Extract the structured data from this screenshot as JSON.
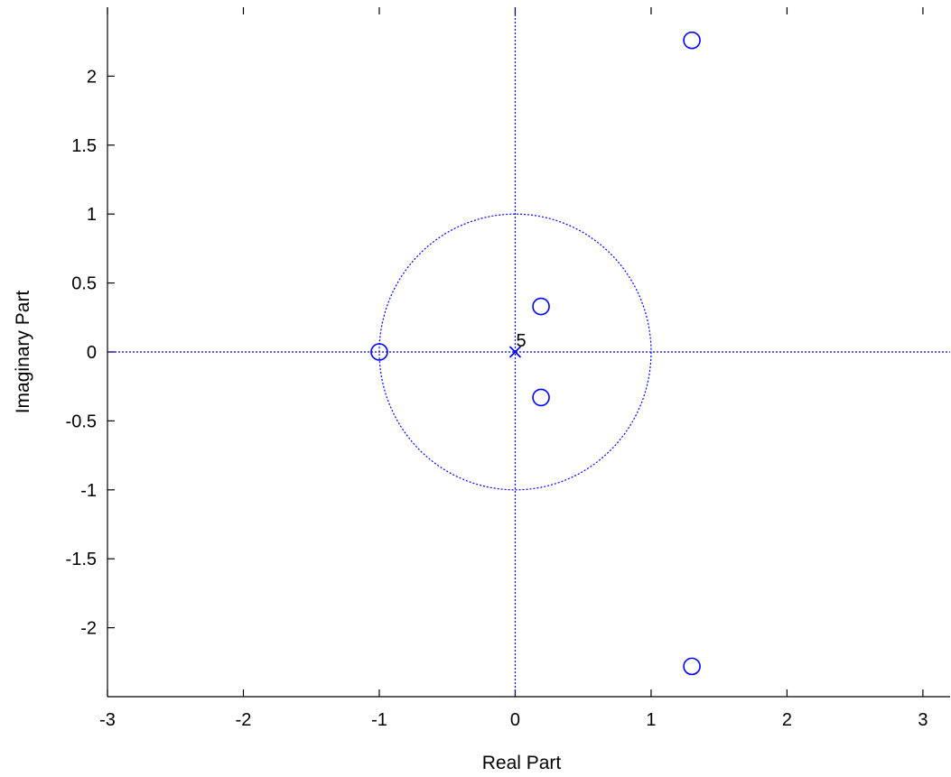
{
  "chart_data": {
    "type": "scatter",
    "title": "",
    "xlabel": "Real Part",
    "ylabel": "Imaginary Part",
    "xlim": [
      -3,
      3.2
    ],
    "ylim": [
      -2.5,
      2.5
    ],
    "xticks": [
      -3,
      -2,
      -1,
      0,
      1,
      2,
      3
    ],
    "yticks": [
      -2,
      -1.5,
      -1,
      -0.5,
      0,
      0.5,
      1,
      1.5,
      2
    ],
    "xtick_labels": [
      "-3",
      "-2",
      "-1",
      "0",
      "1",
      "2",
      "3"
    ],
    "ytick_labels": [
      "-2",
      "-1.5",
      "-1",
      "-0.5",
      "0",
      "0.5",
      "1",
      "1.5",
      "2"
    ],
    "grid": false,
    "unit_circle": true,
    "color": "#0000ff",
    "zeros": [
      {
        "x": -1.0,
        "y": 0.0
      },
      {
        "x": 0.19,
        "y": 0.33
      },
      {
        "x": 0.19,
        "y": -0.33
      },
      {
        "x": 1.3,
        "y": 2.26
      },
      {
        "x": 1.3,
        "y": -2.28
      }
    ],
    "poles": [
      {
        "x": 0.0,
        "y": 0.0
      }
    ],
    "annotations": [
      {
        "text": "5",
        "x": 0.0,
        "y": 0.0
      }
    ]
  }
}
